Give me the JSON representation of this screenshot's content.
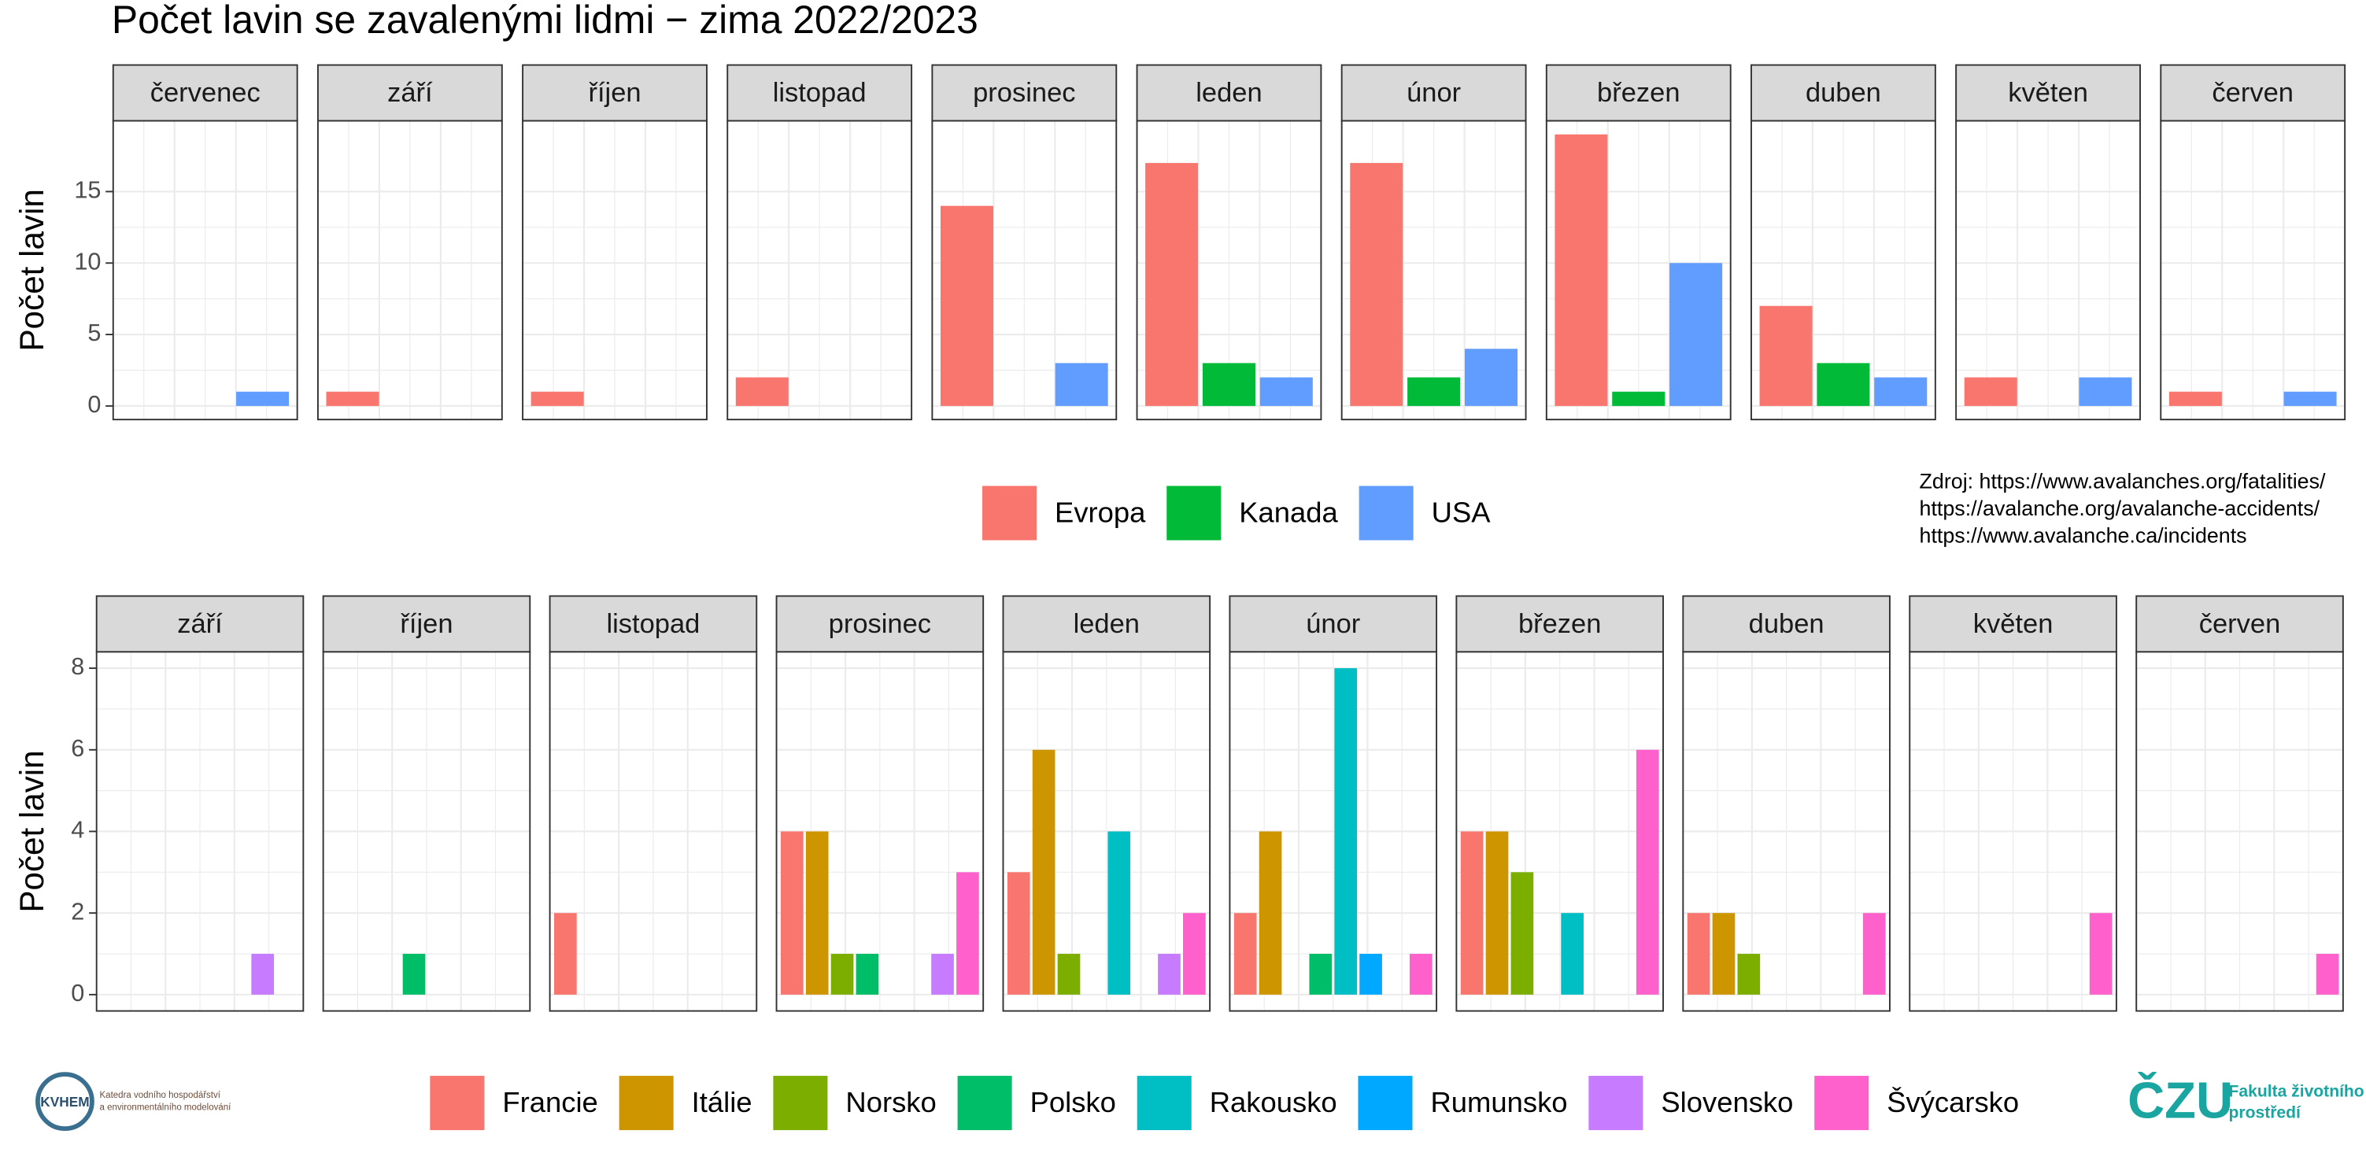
{
  "title": "Počet lavin se zavalenými lidmi − zima 2022/2023",
  "chart_data": [
    {
      "type": "bar",
      "y_label": "Počet lavin",
      "categories": [
        "červenec",
        "září",
        "říjen",
        "listopad",
        "prosinec",
        "leden",
        "únor",
        "březen",
        "duben",
        "květen",
        "červen"
      ],
      "series": [
        {
          "name": "Evropa",
          "color": "#F8766D",
          "values": [
            null,
            1,
            1,
            2,
            14,
            17,
            17,
            19,
            7,
            2,
            1
          ]
        },
        {
          "name": "Kanada",
          "color": "#00BA38",
          "values": [
            null,
            null,
            null,
            null,
            null,
            3,
            2,
            1,
            3,
            null,
            null
          ]
        },
        {
          "name": "USA",
          "color": "#619CFF",
          "values": [
            1,
            null,
            null,
            null,
            3,
            2,
            4,
            10,
            2,
            2,
            1
          ]
        }
      ],
      "ylim": [
        -0.95,
        19.95
      ],
      "yticks": [
        0,
        5,
        10,
        15
      ],
      "grid": true
    },
    {
      "type": "bar",
      "y_label": "Počet lavin",
      "categories": [
        "září",
        "říjen",
        "listopad",
        "prosinec",
        "leden",
        "únor",
        "březen",
        "duben",
        "květen",
        "červen"
      ],
      "series": [
        {
          "name": "Francie",
          "color": "#F8766D",
          "values": [
            null,
            null,
            2,
            4,
            3,
            2,
            4,
            2,
            null,
            null
          ]
        },
        {
          "name": "Itálie",
          "color": "#CD9600",
          "values": [
            null,
            null,
            null,
            4,
            6,
            4,
            4,
            2,
            null,
            null
          ]
        },
        {
          "name": "Norsko",
          "color": "#7CAE00",
          "values": [
            null,
            null,
            null,
            1,
            1,
            null,
            3,
            1,
            null,
            null
          ]
        },
        {
          "name": "Polsko",
          "color": "#00BE67",
          "values": [
            null,
            1,
            null,
            1,
            null,
            1,
            null,
            null,
            null,
            null
          ]
        },
        {
          "name": "Rakousko",
          "color": "#00BFC4",
          "values": [
            null,
            null,
            null,
            null,
            4,
            8,
            2,
            null,
            null,
            null
          ]
        },
        {
          "name": "Rumunsko",
          "color": "#00A9FF",
          "values": [
            null,
            null,
            null,
            null,
            null,
            1,
            null,
            null,
            null,
            null
          ]
        },
        {
          "name": "Slovensko",
          "color": "#C77CFF",
          "values": [
            1,
            null,
            null,
            1,
            1,
            null,
            null,
            null,
            null,
            null
          ]
        },
        {
          "name": "Švýcarsko",
          "color": "#FF61CC",
          "values": [
            null,
            null,
            null,
            3,
            2,
            1,
            6,
            2,
            2,
            1
          ]
        }
      ],
      "ylim": [
        -0.4,
        8.4
      ],
      "yticks": [
        0,
        2,
        4,
        6,
        8
      ],
      "grid": true
    }
  ],
  "source": [
    "Zdroj: https://www.avalanches.org/fatalities/",
    "https://avalanche.org/avalanche-accidents/",
    "https://www.avalanche.ca/incidents"
  ],
  "logos": {
    "left": {
      "name": "KVHEM",
      "lines": [
        "Katedra vodního hospodářství",
        "a environmentálního modelování"
      ]
    },
    "right": {
      "name": "ČZU",
      "lines": [
        "Fakulta životního",
        "prostředí"
      ]
    }
  }
}
